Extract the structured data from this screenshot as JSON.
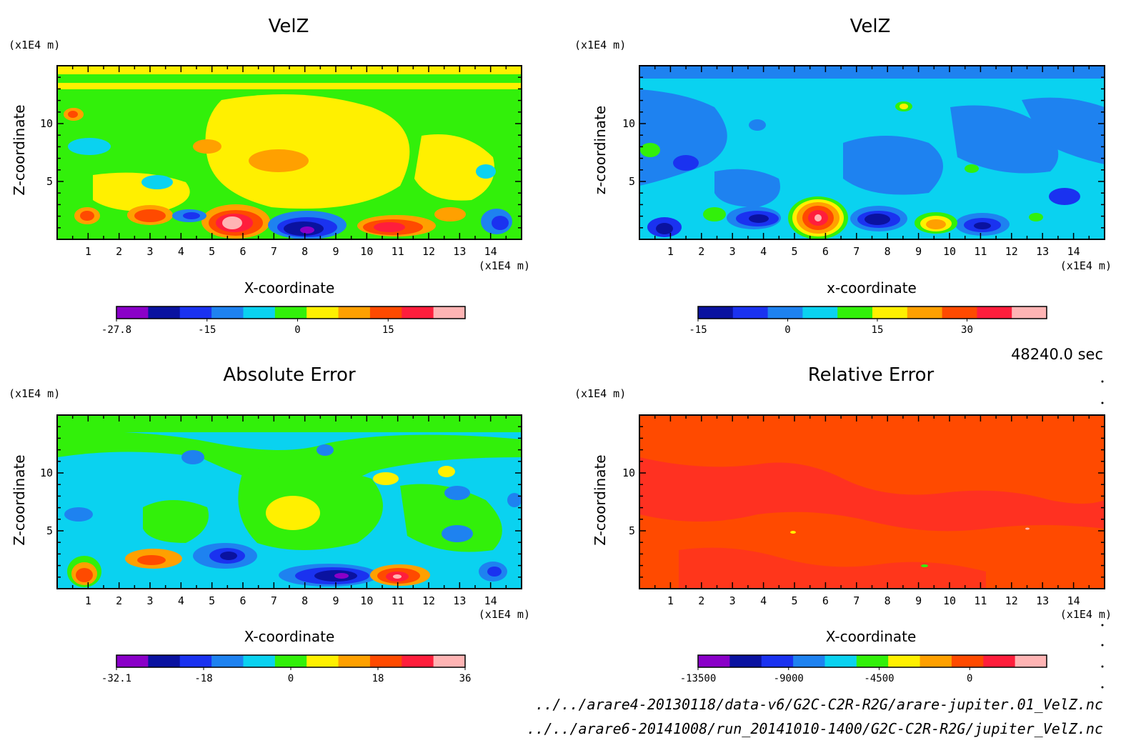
{
  "timestamp": "48240.0 sec",
  "footer": {
    "line1": "../../arare4-20130118/data-v6/G2C-C2R-R2G/arare-jupiter.01_VelZ.nc",
    "line2": "../../arare6-20141008/run_20141010-1400/G2C-C2R-R2G/jupiter_VelZ.nc"
  },
  "chart_data": [
    {
      "id": "p1",
      "type": "heatmap",
      "title": "VelZ",
      "xlabel": "X-coordinate",
      "ylabel": "Z-coordinate",
      "x_unit": "(x1E4 m)",
      "y_unit": "(x1E4 m)",
      "xlim": [
        0,
        15
      ],
      "ylim": [
        0,
        15
      ],
      "x_ticks": [
        "1",
        "2",
        "3",
        "4",
        "5",
        "6",
        "7",
        "8",
        "9",
        "10",
        "11",
        "12",
        "13",
        "14"
      ],
      "y_ticks": [
        "5",
        "10"
      ],
      "colorbar": {
        "colors": [
          "#8a00c8",
          "#0a12a0",
          "#1a32f0",
          "#1e82f0",
          "#0ad2f0",
          "#32f00a",
          "#fff000",
          "#ffa000",
          "#ff4a00",
          "#ff1e3c",
          "#ffb4b4"
        ],
        "tick_labels": [
          "-27.8",
          "-15",
          "0",
          "15"
        ]
      },
      "features": [
        {
          "x": 6.0,
          "z": 1.5,
          "value": 22
        },
        {
          "x": 8.5,
          "z": 0.8,
          "value": -27
        },
        {
          "x": 11.2,
          "z": 1.2,
          "value": 12
        },
        {
          "x": 3.0,
          "z": 1.8,
          "value": 10
        },
        {
          "x": 1.0,
          "z": 2.0,
          "value": 8
        },
        {
          "x": 14.0,
          "z": 1.5,
          "value": -10
        },
        {
          "x": 4.5,
          "z": 2.0,
          "value": -8
        }
      ]
    },
    {
      "id": "p2",
      "type": "heatmap",
      "title": "VelZ",
      "xlabel": "x-coordinate",
      "ylabel": "z-coordinate",
      "x_unit": "(x1E4 m)",
      "y_unit": "(x1E4 m)",
      "xlim": [
        0,
        15
      ],
      "ylim": [
        0,
        15
      ],
      "x_ticks": [
        "1",
        "2",
        "3",
        "4",
        "5",
        "6",
        "7",
        "8",
        "9",
        "10",
        "11",
        "12",
        "13",
        "14"
      ],
      "y_ticks": [
        "5",
        "10"
      ],
      "colorbar": {
        "colors": [
          "#0a12a0",
          "#1a32f0",
          "#1e82f0",
          "#0ad2f0",
          "#32f00a",
          "#fff000",
          "#ffa000",
          "#ff4a00",
          "#ff1e3c",
          "#ffb4b4"
        ],
        "tick_labels": [
          "-15",
          "0",
          "15",
          "30"
        ]
      },
      "features": [
        {
          "x": 5.8,
          "z": 1.8,
          "value": 36
        },
        {
          "x": 9.5,
          "z": 1.2,
          "value": 15
        },
        {
          "x": 3.5,
          "z": 2.0,
          "value": -18
        },
        {
          "x": 7.8,
          "z": 2.0,
          "value": -16
        },
        {
          "x": 11.0,
          "z": 1.5,
          "value": -17
        },
        {
          "x": 1.0,
          "z": 1.0,
          "value": -14
        }
      ]
    },
    {
      "id": "p3",
      "type": "heatmap",
      "title": "Absolute Error",
      "xlabel": "X-coordinate",
      "ylabel": "Z-coordinate",
      "x_unit": "(x1E4 m)",
      "y_unit": "(x1E4 m)",
      "xlim": [
        0,
        15
      ],
      "ylim": [
        0,
        15
      ],
      "x_ticks": [
        "1",
        "2",
        "3",
        "4",
        "5",
        "6",
        "7",
        "8",
        "9",
        "10",
        "11",
        "12",
        "13",
        "14"
      ],
      "y_ticks": [
        "5",
        "10"
      ],
      "colorbar": {
        "colors": [
          "#8a00c8",
          "#0a12a0",
          "#1a32f0",
          "#1e82f0",
          "#0ad2f0",
          "#32f00a",
          "#fff000",
          "#ffa000",
          "#ff4a00",
          "#ff1e3c",
          "#ffb4b4"
        ],
        "tick_labels": [
          "-32.1",
          "-18",
          "0",
          "18",
          "36"
        ]
      },
      "features": [
        {
          "x": 11.0,
          "z": 1.2,
          "value": 34
        },
        {
          "x": 9.2,
          "z": 1.0,
          "value": -30
        },
        {
          "x": 1.0,
          "z": 1.2,
          "value": 20
        },
        {
          "x": 3.0,
          "z": 2.0,
          "value": 12
        },
        {
          "x": 5.5,
          "z": 2.2,
          "value": -18
        },
        {
          "x": 7.5,
          "z": 6.5,
          "value": 8
        }
      ]
    },
    {
      "id": "p4",
      "type": "heatmap",
      "title": "Relative Error",
      "xlabel": "X-coordinate",
      "ylabel": "Z-coordinate",
      "x_unit": "(x1E4 m)",
      "y_unit": "(x1E4 m)",
      "xlim": [
        0,
        15
      ],
      "ylim": [
        0,
        15
      ],
      "x_ticks": [
        "1",
        "2",
        "3",
        "4",
        "5",
        "6",
        "7",
        "8",
        "9",
        "10",
        "11",
        "12",
        "13",
        "14"
      ],
      "y_ticks": [
        "5",
        "10"
      ],
      "colorbar": {
        "colors": [
          "#8a00c8",
          "#0a12a0",
          "#1a32f0",
          "#1e82f0",
          "#0ad2f0",
          "#32f00a",
          "#fff000",
          "#ffa000",
          "#ff4a00",
          "#ff1e3c",
          "#ffb4b4"
        ],
        "tick_labels": [
          "-13500",
          "-9000",
          "-4500",
          "0"
        ]
      },
      "features": []
    }
  ]
}
